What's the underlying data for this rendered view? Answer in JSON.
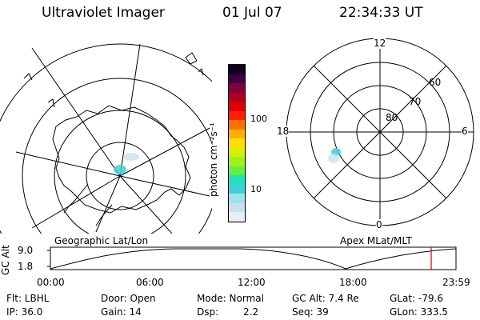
{
  "header": {
    "title": "Ultraviolet Imager",
    "date": "01 Jul 07",
    "time": "22:34:33 UT"
  },
  "maps": {
    "left_label": "Geographic Lat/Lon",
    "right_label": "Apex MLat/MLT",
    "mlt_labels": {
      "top": "12",
      "left": "18",
      "right": "6",
      "bottom": "0"
    },
    "mlat_labels": [
      "60",
      "70",
      "80"
    ]
  },
  "colorbar": {
    "unit_label": "photon cm⁻²s⁻¹",
    "ticks": [
      "100",
      "10"
    ],
    "colors": [
      "#e8eef4",
      "#c8e0f0",
      "#a0e0e8",
      "#40d0d8",
      "#20e0c0",
      "#60f040",
      "#a0f020",
      "#d8f000",
      "#ffe000",
      "#ffb000",
      "#ff7000",
      "#ff2000",
      "#e00000",
      "#b00020",
      "#800040",
      "#400040",
      "#100020"
    ]
  },
  "altitude_plot": {
    "ylabel": "GC Alt",
    "y_top": "9.0",
    "y_bottom": "1.8",
    "x_ticks": [
      "00:00",
      "06:00",
      "12:00",
      "18:00",
      "23:59"
    ],
    "current_marker_color": "#cc0000"
  },
  "info": {
    "flt": "Flt: LBHL",
    "ip": "IP: 36.0",
    "door": "Door: Open",
    "gain": "Gain: 14",
    "mode": "Mode: Normal",
    "dsp_label": "Dsp:",
    "dsp_value": "2.2",
    "gcalt": "GC Alt: 7.4 Re",
    "seq": "Seq: 39",
    "glat": "GLat: -79.6",
    "glon": "GLon: 333.5"
  }
}
